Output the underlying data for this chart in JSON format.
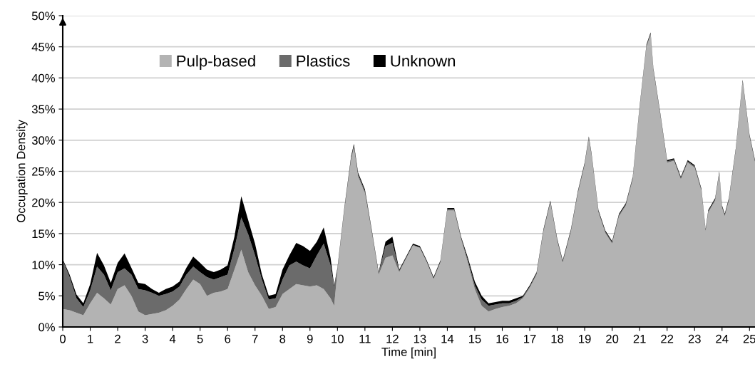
{
  "chart_data": {
    "type": "area",
    "stacked": true,
    "xlabel": "Time [min]",
    "ylabel": "Occupation Density",
    "x": [
      0,
      0.25,
      0.5,
      0.75,
      1,
      1.25,
      1.5,
      1.75,
      2,
      2.25,
      2.5,
      2.75,
      3,
      3.25,
      3.5,
      3.75,
      4,
      4.25,
      4.5,
      4.75,
      5,
      5.25,
      5.5,
      5.75,
      6,
      6.25,
      6.5,
      6.75,
      7,
      7.25,
      7.5,
      7.75,
      8,
      8.25,
      8.5,
      8.75,
      9,
      9.25,
      9.5,
      9.75,
      9.88,
      10,
      10.25,
      10.5,
      10.6,
      10.75,
      11,
      11.25,
      11.5,
      11.75,
      12,
      12.25,
      12.5,
      12.75,
      13,
      13.25,
      13.5,
      13.75,
      14,
      14.25,
      14.5,
      14.75,
      15,
      15.25,
      15.5,
      15.75,
      16,
      16.25,
      16.5,
      16.75,
      17,
      17.25,
      17.5,
      17.75,
      18,
      18.2,
      18.5,
      18.75,
      19,
      19.15,
      19.25,
      19.5,
      19.75,
      20,
      20.25,
      20.5,
      20.75,
      21,
      21.25,
      21.4,
      21.5,
      21.75,
      22,
      22.25,
      22.5,
      22.75,
      23,
      23.25,
      23.4,
      23.5,
      23.75,
      23.9,
      24.0,
      24.1,
      24.25,
      24.5,
      24.75,
      25,
      25.2
    ],
    "series": [
      {
        "name": "Pulp-based",
        "color": "#b3b3b3",
        "values": [
          2.9,
          2.7,
          2.3,
          1.9,
          3.8,
          5.5,
          4.6,
          3.6,
          6.1,
          6.7,
          5.0,
          2.5,
          1.9,
          2.1,
          2.3,
          2.7,
          3.4,
          4.4,
          6.1,
          7.6,
          6.9,
          5.0,
          5.5,
          5.7,
          6.1,
          9.2,
          12.4,
          8.8,
          6.7,
          5.0,
          2.9,
          3.2,
          5.3,
          6.1,
          6.9,
          6.7,
          6.5,
          6.7,
          6.1,
          4.6,
          3.4,
          9.0,
          18.6,
          26.9,
          28.8,
          24.2,
          21.5,
          15.1,
          8.4,
          11.1,
          11.5,
          8.8,
          11.0,
          13.1,
          12.7,
          10.4,
          7.7,
          10.4,
          18.7,
          18.7,
          14.1,
          10.3,
          6.1,
          3.4,
          2.5,
          2.9,
          3.2,
          3.4,
          3.8,
          4.6,
          6.3,
          8.4,
          15.3,
          19.9,
          13.8,
          10.3,
          15.3,
          21.4,
          26.0,
          30.2,
          27.5,
          18.4,
          15.1,
          13.4,
          17.8,
          19.5,
          23.7,
          35.1,
          45.0,
          46.9,
          41.2,
          34.0,
          26.4,
          26.7,
          23.7,
          26.4,
          25.6,
          21.8,
          15.3,
          18.4,
          20.3,
          24.6,
          19.1,
          17.8,
          20.3,
          28.3,
          39.3,
          30.5,
          26.4
        ]
      },
      {
        "name": "Plastics",
        "color": "#6b6b6b",
        "values": [
          7.8,
          5.3,
          2.3,
          1.3,
          2.1,
          4.2,
          3.8,
          2.3,
          2.7,
          2.7,
          3.4,
          3.6,
          4.0,
          3.4,
          2.7,
          2.6,
          2.3,
          2.1,
          2.3,
          2.1,
          1.9,
          3.0,
          2.1,
          2.3,
          2.3,
          3.4,
          5.2,
          6.1,
          4.8,
          2.6,
          1.5,
          1.4,
          2.3,
          3.8,
          3.6,
          3.2,
          2.9,
          4.8,
          7.3,
          5.3,
          3.0,
          0.3,
          0.3,
          0.3,
          0.3,
          0.3,
          0.3,
          0.3,
          0.2,
          1.9,
          2.0,
          0.2,
          0.1,
          0.1,
          0.1,
          0.1,
          0.1,
          0.1,
          0.2,
          0.2,
          0.2,
          0.4,
          0.6,
          1.0,
          0.9,
          0.7,
          0.6,
          0.4,
          0.4,
          0.2,
          0.2,
          0.2,
          0.2,
          0.2,
          0.2,
          0.2,
          0.2,
          0.2,
          0.2,
          0.2,
          0.2,
          0.2,
          0.2,
          0.2,
          0.2,
          0.2,
          0.2,
          0.2,
          0.2,
          0.2,
          0.2,
          0.2,
          0.2,
          0.2,
          0.2,
          0.2,
          0.2,
          0.2,
          0.2,
          0.2,
          0.2,
          0.2,
          0.2,
          0.2,
          0.2,
          0.2,
          0.2,
          0.2,
          0.2
        ]
      },
      {
        "name": "Unknown",
        "color": "#000000",
        "values": [
          0.2,
          0.4,
          0.6,
          0.6,
          1.0,
          2.2,
          1.5,
          1.2,
          1.5,
          2.4,
          1.1,
          1.0,
          1.0,
          0.6,
          0.5,
          0.8,
          0.8,
          0.8,
          1.1,
          1.6,
          1.5,
          1.2,
          1.2,
          1.2,
          1.5,
          1.9,
          3.4,
          2.3,
          1.9,
          0.8,
          0.6,
          0.7,
          1.6,
          1.6,
          3.0,
          3.1,
          2.8,
          2.2,
          2.6,
          1.2,
          0.3,
          0.2,
          0.2,
          0.3,
          0.3,
          0.3,
          0.3,
          0.2,
          0.2,
          0.7,
          1.0,
          0.2,
          0.2,
          0.2,
          0.2,
          0.2,
          0.2,
          0.2,
          0.2,
          0.2,
          0.2,
          0.4,
          0.6,
          0.6,
          0.4,
          0.4,
          0.4,
          0.4,
          0.4,
          0.2,
          0.2,
          0.2,
          0.2,
          0.2,
          0.2,
          0.2,
          0.2,
          0.2,
          0.2,
          0.2,
          0.2,
          0.2,
          0.2,
          0.2,
          0.2,
          0.2,
          0.2,
          0.2,
          0.2,
          0.2,
          0.2,
          0.2,
          0.2,
          0.2,
          0.2,
          0.2,
          0.2,
          0.2,
          0.2,
          0.2,
          0.2,
          0.2,
          0.2,
          0.2,
          0.2,
          0.2,
          0.2,
          0.2,
          0.2
        ]
      }
    ],
    "xlim": [
      0,
      25.2
    ],
    "xticks": [
      0,
      1,
      2,
      3,
      4,
      5,
      6,
      7,
      8,
      9,
      10,
      11,
      12,
      13,
      14,
      15,
      16,
      17,
      18,
      19,
      20,
      21,
      22,
      23,
      24,
      25
    ],
    "ylim": [
      0,
      50
    ],
    "yticks": [
      {
        "value": 0,
        "label": "0%"
      },
      {
        "value": 5,
        "label": "5%"
      },
      {
        "value": 10,
        "label": "10%"
      },
      {
        "value": 15,
        "label": "15%"
      },
      {
        "value": 20,
        "label": "20%"
      },
      {
        "value": 25,
        "label": "25%"
      },
      {
        "value": 30,
        "label": "30%"
      },
      {
        "value": 35,
        "label": "35%"
      },
      {
        "value": 40,
        "label": "40%"
      },
      {
        "value": 45,
        "label": "45%"
      },
      {
        "value": 50,
        "label": "50%"
      }
    ],
    "grid": "y",
    "legend": "top left"
  }
}
